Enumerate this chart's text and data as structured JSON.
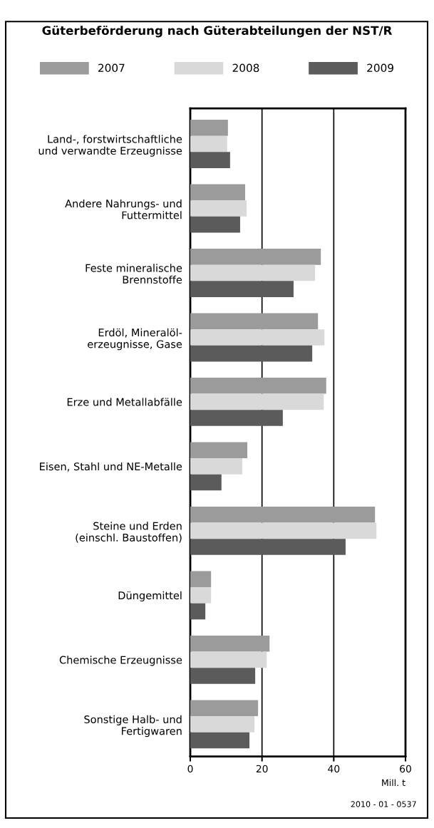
{
  "chart_data": {
    "type": "bar",
    "orientation": "horizontal",
    "title": "Güterbeförderung nach Güterabteilungen der NST/R",
    "categories": [
      "Land-, forstwirtschaftliche\nund verwandte Erzeugnisse",
      "Andere Nahrungs- und\nFuttermittel",
      "Feste mineralische\nBrennstoffe",
      "Erdöl, Mineralöl-\nerzeugnisse, Gase",
      "Erze und Metallabfälle",
      "Eisen, Stahl und NE-Metalle",
      "Steine und Erden\n(einschl. Baustoffen)",
      "Düngemittel",
      "Chemische Erzeugnisse",
      "Sonstige Halb- und\nFertigwaren"
    ],
    "series": [
      {
        "name": "2007",
        "color": "#9b9b9b",
        "values": [
          10.5,
          15.3,
          36.4,
          35.6,
          37.9,
          15.9,
          51.5,
          5.8,
          22.1,
          18.9
        ]
      },
      {
        "name": "2008",
        "color": "#d9d9d9",
        "values": [
          10.3,
          15.7,
          34.8,
          37.4,
          37.2,
          14.5,
          51.9,
          5.8,
          21.3,
          17.9
        ]
      },
      {
        "name": "2009",
        "color": "#5b5b5b",
        "values": [
          11.1,
          13.9,
          28.8,
          34.0,
          25.8,
          8.7,
          43.3,
          4.2,
          18.1,
          16.5
        ]
      }
    ],
    "xlim": [
      0,
      60
    ],
    "xticks": [
      0,
      20,
      40,
      60
    ],
    "xlabel": "Mill. t",
    "grid": "x",
    "legend": "top",
    "annotations": [
      "2010 - 01 - 0537"
    ]
  }
}
